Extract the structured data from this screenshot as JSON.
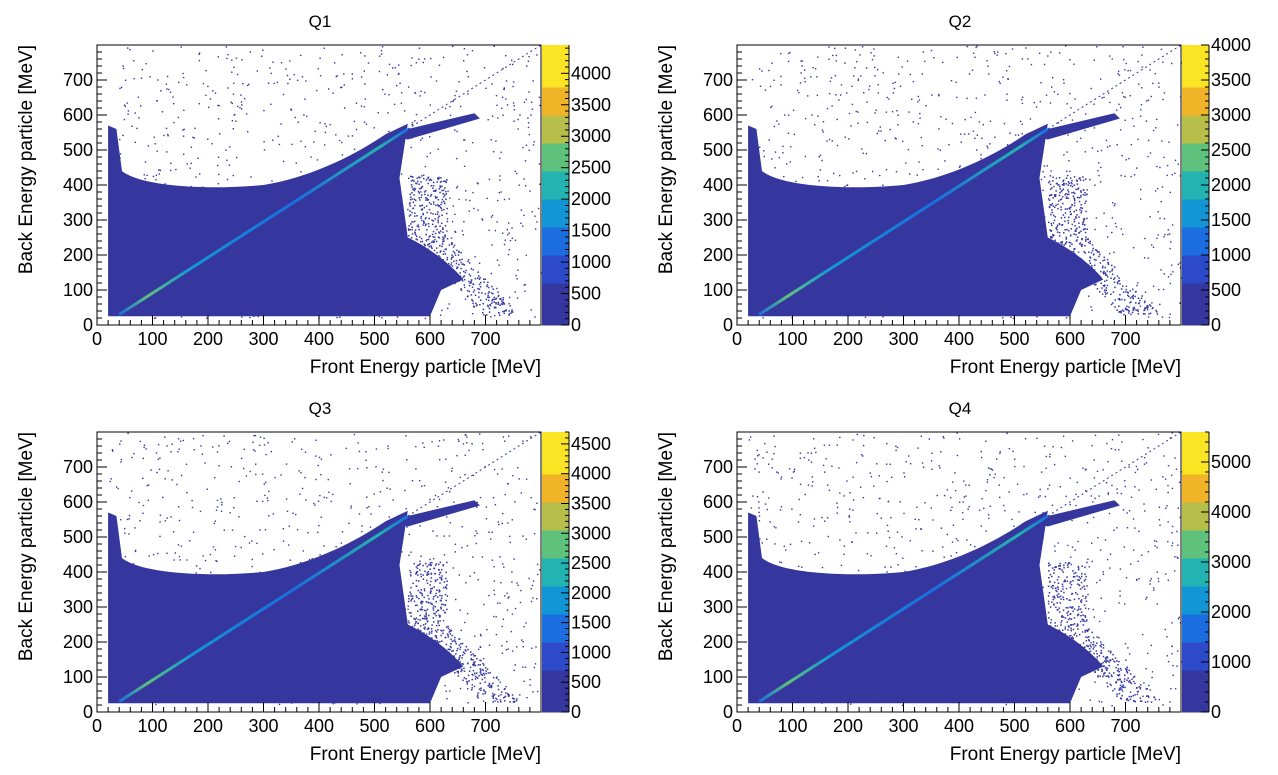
{
  "chart_data": [
    {
      "type": "heatmap",
      "title": "Q1",
      "xlabel": "Front Energy particle [MeV]",
      "ylabel": "Back Energy particle [MeV]",
      "xlim": [
        0,
        800
      ],
      "ylim": [
        0,
        800
      ],
      "x_ticks": [
        0,
        100,
        200,
        300,
        400,
        500,
        600,
        700
      ],
      "y_ticks": [
        0,
        100,
        200,
        300,
        400,
        500,
        600,
        700
      ],
      "z_range": [
        0,
        4450
      ],
      "z_ticks": [
        0,
        500,
        1000,
        1500,
        2000,
        2500,
        3000,
        3500,
        4000
      ],
      "colormap": [
        "#35369e",
        "#2d4acb",
        "#1b6de0",
        "#1396d6",
        "#23b3b0",
        "#5ec27c",
        "#b7be49",
        "#f1b328",
        "#fbe423"
      ],
      "grid": false,
      "legend": "colorbar-right"
    },
    {
      "type": "heatmap",
      "title": "Q2",
      "xlabel": "Front Energy particle [MeV]",
      "ylabel": "Back Energy particle [MeV]",
      "xlim": [
        0,
        800
      ],
      "ylim": [
        0,
        800
      ],
      "x_ticks": [
        0,
        100,
        200,
        300,
        400,
        500,
        600,
        700
      ],
      "y_ticks": [
        0,
        100,
        200,
        300,
        400,
        500,
        600,
        700
      ],
      "z_range": [
        0,
        4000
      ],
      "z_ticks": [
        0,
        500,
        1000,
        1500,
        2000,
        2500,
        3000,
        3500,
        4000
      ],
      "colormap": [
        "#35369e",
        "#2d4acb",
        "#1b6de0",
        "#1396d6",
        "#23b3b0",
        "#5ec27c",
        "#b7be49",
        "#f1b328",
        "#fbe423"
      ],
      "grid": false,
      "legend": "colorbar-right"
    },
    {
      "type": "heatmap",
      "title": "Q3",
      "xlabel": "Front Energy particle [MeV]",
      "ylabel": "Back Energy particle [MeV]",
      "xlim": [
        0,
        800
      ],
      "ylim": [
        0,
        800
      ],
      "x_ticks": [
        0,
        100,
        200,
        300,
        400,
        500,
        600,
        700
      ],
      "y_ticks": [
        0,
        100,
        200,
        300,
        400,
        500,
        600,
        700
      ],
      "z_range": [
        0,
        4700
      ],
      "z_ticks": [
        0,
        500,
        1000,
        1500,
        2000,
        2500,
        3000,
        3500,
        4000,
        4500
      ],
      "colormap": [
        "#35369e",
        "#2d4acb",
        "#1b6de0",
        "#1396d6",
        "#23b3b0",
        "#5ec27c",
        "#b7be49",
        "#f1b328",
        "#fbe423"
      ],
      "grid": false,
      "legend": "colorbar-right"
    },
    {
      "type": "heatmap",
      "title": "Q4",
      "xlabel": "Front Energy particle [MeV]",
      "ylabel": "Back Energy particle [MeV]",
      "xlim": [
        0,
        800
      ],
      "ylim": [
        0,
        800
      ],
      "x_ticks": [
        0,
        100,
        200,
        300,
        400,
        500,
        600,
        700
      ],
      "y_ticks": [
        0,
        100,
        200,
        300,
        400,
        500,
        600,
        700
      ],
      "z_range": [
        0,
        5600
      ],
      "z_ticks": [
        0,
        1000,
        2000,
        3000,
        4000,
        5000
      ],
      "colormap": [
        "#35369e",
        "#2d4acb",
        "#1b6de0",
        "#1396d6",
        "#23b3b0",
        "#5ec27c",
        "#b7be49",
        "#f1b328",
        "#fbe423"
      ],
      "grid": false,
      "legend": "colorbar-right"
    }
  ]
}
